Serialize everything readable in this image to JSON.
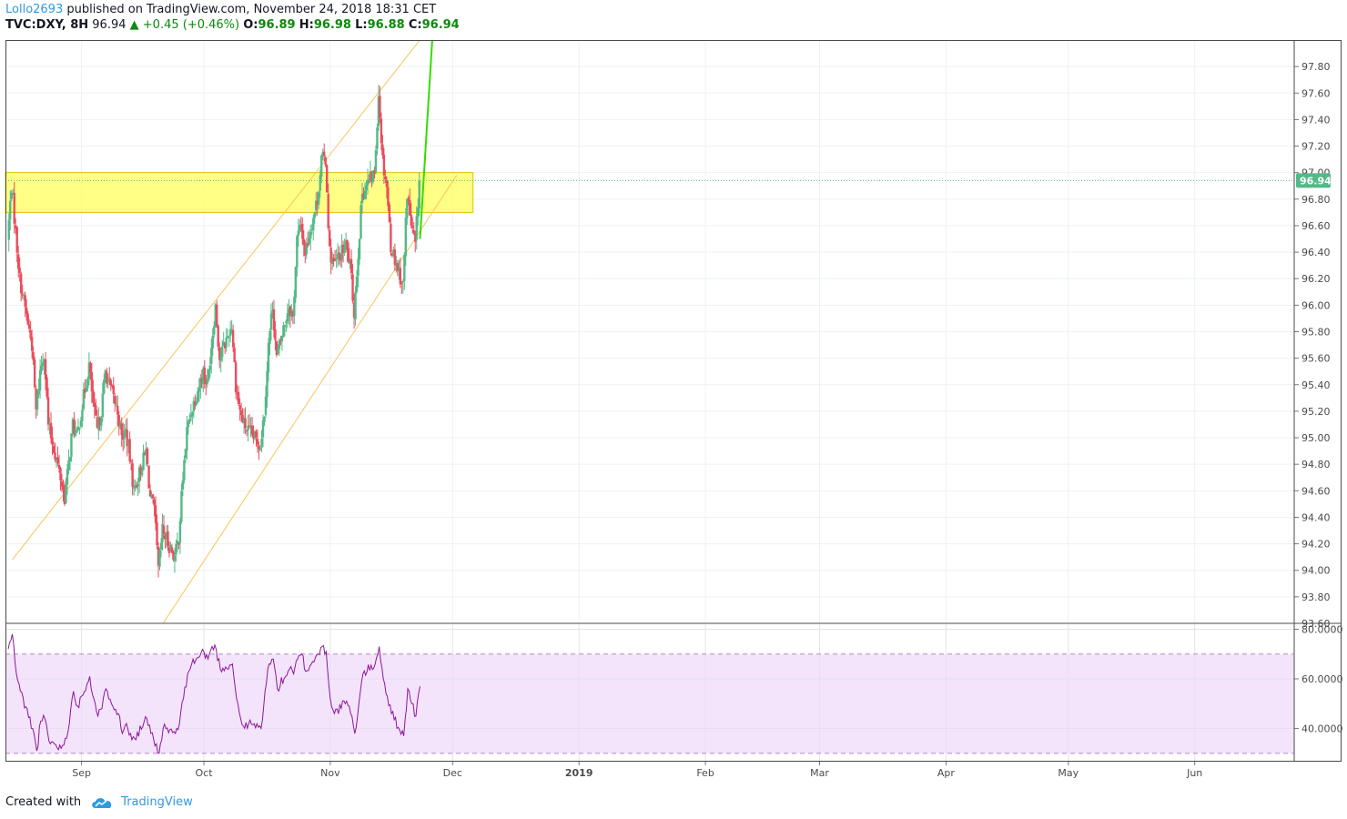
{
  "header": {
    "author": "Lollo2693",
    "published_text": "published on TradingView.com, November 24, 2018 18:31 CET",
    "symbol": "TVC:DXY, 8H",
    "last": "96.94",
    "change": "+0.45 (+0.46%)",
    "o_label": "O:",
    "o_value": "96.89",
    "h_label": "H:",
    "h_value": "96.98",
    "l_label": "L:",
    "l_value": "96.88",
    "c_label": "C:",
    "c_value": "96.94"
  },
  "footer": {
    "created_with": "Created with",
    "brand": "TradingView"
  },
  "colors": {
    "up": "#53b987",
    "down": "#eb4d5c",
    "channel": "#f7c45a",
    "zone_fill": "#ffff66",
    "zone_stroke": "#e0c000",
    "projection": "#33dd00",
    "rsi_line": "#8e1599",
    "rsi_band": "#f3e4fb",
    "price_tag": "#53b987"
  },
  "chart_data": {
    "type": "candlestick",
    "symbol": "TVC:DXY",
    "interval": "8H",
    "price_axis": {
      "ticks": [
        "97.80",
        "97.60",
        "97.40",
        "97.20",
        "97.00",
        "96.80",
        "96.60",
        "96.40",
        "96.20",
        "96.00",
        "95.80",
        "95.60",
        "95.40",
        "95.20",
        "95.00",
        "94.80",
        "94.60",
        "94.40",
        "94.20",
        "94.00",
        "93.80",
        "93.60"
      ],
      "range": [
        93.6,
        98.0
      ]
    },
    "time_axis": {
      "labels": [
        "Sep",
        "Oct",
        "Nov",
        "Dec",
        "2019",
        "Feb",
        "Mar",
        "Apr",
        "May",
        "Jun"
      ]
    },
    "last_price_label": "96.94",
    "path_points": [
      [
        "2018-08-14",
        96.5
      ],
      [
        "2018-08-15",
        96.9
      ],
      [
        "2018-08-16",
        96.55
      ],
      [
        "2018-08-17",
        96.2
      ],
      [
        "2018-08-20",
        95.7
      ],
      [
        "2018-08-21",
        95.2
      ],
      [
        "2018-08-22",
        95.5
      ],
      [
        "2018-08-23",
        95.65
      ],
      [
        "2018-08-24",
        95.1
      ],
      [
        "2018-08-27",
        94.7
      ],
      [
        "2018-08-28",
        94.55
      ],
      [
        "2018-08-29",
        94.8
      ],
      [
        "2018-08-30",
        95.1
      ],
      [
        "2018-08-31",
        95.0
      ],
      [
        "2018-09-03",
        95.55
      ],
      [
        "2018-09-04",
        95.25
      ],
      [
        "2018-09-05",
        95.05
      ],
      [
        "2018-09-06",
        95.2
      ],
      [
        "2018-09-07",
        95.5
      ],
      [
        "2018-09-10",
        95.2
      ],
      [
        "2018-09-11",
        95.0
      ],
      [
        "2018-09-12",
        95.05
      ],
      [
        "2018-09-13",
        94.85
      ],
      [
        "2018-09-14",
        94.6
      ],
      [
        "2018-09-17",
        94.9
      ],
      [
        "2018-09-18",
        94.55
      ],
      [
        "2018-09-19",
        94.45
      ],
      [
        "2018-09-20",
        94.0
      ],
      [
        "2018-09-21",
        94.3
      ],
      [
        "2018-09-24",
        94.1
      ],
      [
        "2018-09-25",
        94.25
      ],
      [
        "2018-09-26",
        94.7
      ],
      [
        "2018-09-27",
        95.05
      ],
      [
        "2018-09-28",
        95.2
      ],
      [
        "2018-10-01",
        95.5
      ],
      [
        "2018-10-02",
        95.4
      ],
      [
        "2018-10-03",
        95.7
      ],
      [
        "2018-10-04",
        96.0
      ],
      [
        "2018-10-05",
        95.6
      ],
      [
        "2018-10-08",
        95.85
      ],
      [
        "2018-10-09",
        95.4
      ],
      [
        "2018-10-10",
        95.2
      ],
      [
        "2018-10-11",
        95.1
      ],
      [
        "2018-10-12",
        95.05
      ],
      [
        "2018-10-15",
        94.95
      ],
      [
        "2018-10-16",
        95.2
      ],
      [
        "2018-10-17",
        95.7
      ],
      [
        "2018-10-18",
        96.0
      ],
      [
        "2018-10-19",
        95.6
      ],
      [
        "2018-10-22",
        96.0
      ],
      [
        "2018-10-23",
        95.9
      ],
      [
        "2018-10-24",
        96.5
      ],
      [
        "2018-10-25",
        96.6
      ],
      [
        "2018-10-26",
        96.4
      ],
      [
        "2018-10-29",
        96.8
      ],
      [
        "2018-10-30",
        97.1
      ],
      [
        "2018-10-31",
        97.1
      ],
      [
        "2018-11-01",
        96.4
      ],
      [
        "2018-11-02",
        96.3
      ],
      [
        "2018-11-05",
        96.45
      ],
      [
        "2018-11-06",
        96.3
      ],
      [
        "2018-11-07",
        95.95
      ],
      [
        "2018-11-08",
        96.4
      ],
      [
        "2018-11-09",
        96.85
      ],
      [
        "2018-11-12",
        97.0
      ],
      [
        "2018-11-13",
        97.6
      ],
      [
        "2018-11-14",
        97.1
      ],
      [
        "2018-11-15",
        96.9
      ],
      [
        "2018-11-16",
        96.45
      ],
      [
        "2018-11-19",
        96.15
      ],
      [
        "2018-11-20",
        96.85
      ],
      [
        "2018-11-21",
        96.6
      ],
      [
        "2018-11-22",
        96.45
      ],
      [
        "2018-11-23",
        96.94
      ]
    ],
    "drawings": {
      "resistance_zone": {
        "from": "2018-08-14",
        "to": "2018-12-06",
        "top": 97.0,
        "bottom": 96.7
      },
      "channel_upper": [
        [
          "2018-08-15",
          94.08
        ],
        [
          "2018-11-25",
          98.08
        ]
      ],
      "channel_lower": [
        [
          "2018-09-21",
          93.6
        ],
        [
          "2018-12-02",
          96.98
        ]
      ],
      "projection": [
        [
          "2018-11-23",
          96.5
        ],
        [
          "2018-11-26",
          98.0
        ]
      ]
    },
    "rsi": {
      "axis_ticks": [
        "80.0000",
        "60.0000",
        "40.0000"
      ],
      "upper_band": 70,
      "lower_band": 30,
      "points": [
        [
          "2018-08-14",
          72
        ],
        [
          "2018-08-15",
          78
        ],
        [
          "2018-08-16",
          62
        ],
        [
          "2018-08-17",
          55
        ],
        [
          "2018-08-20",
          40
        ],
        [
          "2018-08-21",
          31
        ],
        [
          "2018-08-22",
          43
        ],
        [
          "2018-08-23",
          44
        ],
        [
          "2018-08-24",
          35
        ],
        [
          "2018-08-27",
          32
        ],
        [
          "2018-08-28",
          36
        ],
        [
          "2018-08-29",
          42
        ],
        [
          "2018-08-30",
          55
        ],
        [
          "2018-08-31",
          49
        ],
        [
          "2018-09-03",
          61
        ],
        [
          "2018-09-04",
          52
        ],
        [
          "2018-09-05",
          45
        ],
        [
          "2018-09-06",
          48
        ],
        [
          "2018-09-07",
          56
        ],
        [
          "2018-09-10",
          46
        ],
        [
          "2018-09-11",
          38
        ],
        [
          "2018-09-12",
          42
        ],
        [
          "2018-09-13",
          38
        ],
        [
          "2018-09-14",
          36
        ],
        [
          "2018-09-17",
          44
        ],
        [
          "2018-09-18",
          38
        ],
        [
          "2018-09-19",
          33
        ],
        [
          "2018-09-20",
          30
        ],
        [
          "2018-09-21",
          40
        ],
        [
          "2018-09-24",
          38
        ],
        [
          "2018-09-25",
          42
        ],
        [
          "2018-09-26",
          52
        ],
        [
          "2018-09-27",
          62
        ],
        [
          "2018-09-28",
          66
        ],
        [
          "2018-10-01",
          71
        ],
        [
          "2018-10-02",
          68
        ],
        [
          "2018-10-03",
          73
        ],
        [
          "2018-10-04",
          72
        ],
        [
          "2018-10-05",
          64
        ],
        [
          "2018-10-08",
          66
        ],
        [
          "2018-10-09",
          52
        ],
        [
          "2018-10-10",
          44
        ],
        [
          "2018-10-11",
          40
        ],
        [
          "2018-10-12",
          42
        ],
        [
          "2018-10-15",
          40
        ],
        [
          "2018-10-16",
          55
        ],
        [
          "2018-10-17",
          66
        ],
        [
          "2018-10-18",
          68
        ],
        [
          "2018-10-19",
          56
        ],
        [
          "2018-10-22",
          64
        ],
        [
          "2018-10-23",
          62
        ],
        [
          "2018-10-24",
          68
        ],
        [
          "2018-10-25",
          70
        ],
        [
          "2018-10-26",
          63
        ],
        [
          "2018-10-29",
          70
        ],
        [
          "2018-10-30",
          73
        ],
        [
          "2018-10-31",
          71
        ],
        [
          "2018-11-01",
          52
        ],
        [
          "2018-11-02",
          46
        ],
        [
          "2018-11-05",
          51
        ],
        [
          "2018-11-06",
          46
        ],
        [
          "2018-11-07",
          38
        ],
        [
          "2018-11-08",
          50
        ],
        [
          "2018-11-09",
          62
        ],
        [
          "2018-11-12",
          66
        ],
        [
          "2018-11-13",
          73
        ],
        [
          "2018-11-14",
          60
        ],
        [
          "2018-11-15",
          53
        ],
        [
          "2018-11-16",
          46
        ],
        [
          "2018-11-19",
          37
        ],
        [
          "2018-11-20",
          56
        ],
        [
          "2018-11-21",
          50
        ],
        [
          "2018-11-22",
          45
        ],
        [
          "2018-11-23",
          57
        ]
      ]
    }
  }
}
